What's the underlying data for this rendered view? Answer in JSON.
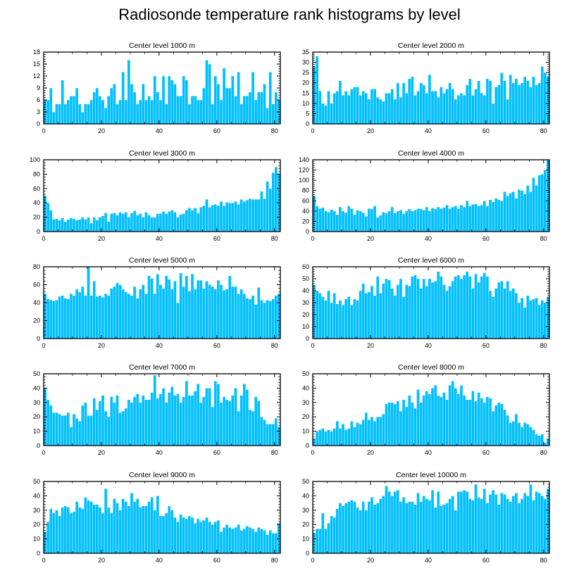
{
  "title": "Radiosonde temperature rank histograms by level",
  "colors": {
    "bar": "#00BFFF",
    "bar_edge": "#ffffff",
    "axis": "#000000"
  },
  "chart_data": [
    {
      "type": "bar",
      "title": "Center level 1000 m",
      "xlabel": "",
      "ylabel": "",
      "xlim": [
        0,
        82
      ],
      "ylim": [
        0,
        18
      ],
      "xticks": [
        0,
        20,
        40,
        60,
        80
      ],
      "yticks": [
        0,
        3,
        6,
        9,
        12,
        15,
        18
      ],
      "values": [
        6,
        6,
        9,
        3,
        5,
        5,
        11,
        5,
        6,
        7,
        7,
        9,
        5,
        3,
        5,
        5,
        6,
        8,
        9,
        7,
        6,
        4,
        7,
        9,
        10,
        5,
        6,
        13,
        6,
        16,
        10,
        8,
        5,
        6,
        10,
        6,
        7,
        6,
        12,
        8,
        6,
        12,
        5,
        12,
        11,
        10,
        7,
        7,
        12,
        11,
        5,
        7,
        7,
        6,
        6,
        9,
        16,
        15,
        5,
        12,
        10,
        6,
        14,
        9,
        9,
        12,
        7,
        13,
        5,
        7,
        7,
        8,
        13,
        6,
        8,
        8,
        10,
        4,
        13,
        5,
        8,
        6
      ]
    },
    {
      "type": "bar",
      "title": "Center level 2000 m",
      "xlabel": "",
      "ylabel": "",
      "xlim": [
        0,
        82
      ],
      "ylim": [
        0,
        35
      ],
      "xticks": [
        0,
        20,
        40,
        60,
        80
      ],
      "yticks": [
        0,
        5,
        10,
        15,
        20,
        25,
        30,
        35
      ],
      "values": [
        28,
        33,
        16,
        10,
        9,
        16,
        10,
        15,
        16,
        21,
        14,
        16,
        14,
        17,
        18,
        18,
        14,
        16,
        15,
        12,
        17,
        17,
        13,
        12,
        11,
        15,
        15,
        17,
        12,
        20,
        13,
        20,
        15,
        22,
        23,
        14,
        16,
        20,
        19,
        15,
        24,
        16,
        16,
        13,
        18,
        15,
        17,
        20,
        17,
        12,
        14,
        15,
        14,
        19,
        22,
        14,
        17,
        21,
        15,
        14,
        22,
        21,
        10,
        18,
        19,
        25,
        21,
        12,
        24,
        20,
        22,
        19,
        20,
        23,
        21,
        18,
        23,
        19,
        20,
        28,
        25,
        23
      ]
    },
    {
      "type": "bar",
      "title": "Center level 3000 m",
      "xlabel": "",
      "ylabel": "",
      "xlim": [
        0,
        82
      ],
      "ylim": [
        0,
        100
      ],
      "xticks": [
        0,
        20,
        40,
        60,
        80
      ],
      "yticks": [
        0,
        20,
        40,
        60,
        80,
        100
      ],
      "values": [
        50,
        40,
        30,
        17,
        18,
        16,
        19,
        14,
        17,
        19,
        18,
        16,
        17,
        20,
        17,
        20,
        12,
        20,
        16,
        20,
        22,
        26,
        14,
        25,
        26,
        23,
        27,
        25,
        27,
        20,
        26,
        29,
        23,
        25,
        20,
        27,
        23,
        20,
        20,
        25,
        25,
        28,
        25,
        28,
        30,
        27,
        20,
        24,
        25,
        30,
        33,
        30,
        33,
        26,
        34,
        36,
        45,
        34,
        37,
        38,
        36,
        42,
        36,
        41,
        40,
        40,
        42,
        38,
        45,
        42,
        44,
        46,
        45,
        45,
        45,
        56,
        46,
        70,
        60,
        82,
        90,
        80
      ]
    },
    {
      "type": "bar",
      "title": "Center level 4000 m",
      "xlabel": "",
      "ylabel": "",
      "xlim": [
        0,
        82
      ],
      "ylim": [
        0,
        140
      ],
      "xticks": [
        0,
        20,
        40,
        60,
        80
      ],
      "yticks": [
        0,
        20,
        40,
        60,
        80,
        100,
        120,
        140
      ],
      "values": [
        70,
        50,
        45,
        47,
        40,
        38,
        43,
        40,
        33,
        48,
        40,
        37,
        50,
        45,
        33,
        42,
        40,
        37,
        30,
        45,
        44,
        50,
        28,
        32,
        38,
        36,
        40,
        48,
        36,
        40,
        42,
        35,
        40,
        44,
        40,
        42,
        45,
        44,
        42,
        48,
        40,
        46,
        44,
        48,
        45,
        47,
        52,
        45,
        48,
        50,
        45,
        52,
        48,
        60,
        50,
        53,
        54,
        50,
        52,
        60,
        50,
        62,
        58,
        65,
        62,
        60,
        78,
        70,
        75,
        78,
        65,
        82,
        80,
        73,
        90,
        78,
        105,
        90,
        110,
        112,
        120,
        140
      ]
    },
    {
      "type": "bar",
      "title": "Center level 5000 m",
      "xlabel": "",
      "ylabel": "",
      "xlim": [
        0,
        82
      ],
      "ylim": [
        0,
        80
      ],
      "xticks": [
        0,
        20,
        40,
        60,
        80
      ],
      "yticks": [
        0,
        20,
        40,
        60,
        80
      ],
      "values": [
        50,
        44,
        43,
        42,
        43,
        47,
        48,
        45,
        44,
        50,
        48,
        55,
        52,
        58,
        48,
        80,
        48,
        64,
        47,
        48,
        46,
        50,
        48,
        56,
        58,
        62,
        60,
        55,
        52,
        50,
        48,
        58,
        45,
        55,
        60,
        50,
        70,
        67,
        50,
        72,
        60,
        56,
        70,
        66,
        55,
        64,
        40,
        73,
        58,
        70,
        53,
        72,
        55,
        65,
        65,
        56,
        64,
        60,
        58,
        55,
        65,
        60,
        54,
        55,
        70,
        58,
        58,
        50,
        55,
        50,
        45,
        44,
        48,
        38,
        57,
        43,
        40,
        43,
        42,
        44,
        48,
        50
      ]
    },
    {
      "type": "bar",
      "title": "Center level 6000 m",
      "xlabel": "",
      "ylabel": "",
      "xlim": [
        0,
        82
      ],
      "ylim": [
        0,
        60
      ],
      "xticks": [
        0,
        20,
        40,
        60,
        80
      ],
      "yticks": [
        0,
        10,
        20,
        30,
        40,
        50,
        60
      ],
      "values": [
        45,
        40,
        38,
        35,
        32,
        40,
        30,
        38,
        29,
        32,
        28,
        33,
        35,
        28,
        33,
        32,
        40,
        46,
        38,
        39,
        44,
        36,
        52,
        38,
        46,
        50,
        49,
        42,
        36,
        45,
        50,
        35,
        45,
        44,
        52,
        53,
        50,
        42,
        50,
        44,
        50,
        47,
        48,
        56,
        52,
        45,
        40,
        44,
        48,
        52,
        53,
        50,
        53,
        56,
        52,
        42,
        54,
        47,
        52,
        55,
        52,
        40,
        35,
        42,
        47,
        48,
        42,
        48,
        40,
        42,
        38,
        30,
        34,
        26,
        36,
        32,
        33,
        34,
        28,
        32,
        30,
        35
      ]
    },
    {
      "type": "bar",
      "title": "Center level 7000 m",
      "xlabel": "",
      "ylabel": "",
      "xlim": [
        0,
        82
      ],
      "ylim": [
        0,
        50
      ],
      "xticks": [
        0,
        20,
        40,
        60,
        80
      ],
      "yticks": [
        0,
        10,
        20,
        30,
        40,
        50
      ],
      "values": [
        40,
        32,
        28,
        23,
        23,
        22,
        21,
        21,
        23,
        13,
        22,
        19,
        17,
        28,
        30,
        21,
        21,
        33,
        25,
        31,
        35,
        24,
        20,
        34,
        30,
        35,
        23,
        24,
        26,
        32,
        30,
        34,
        36,
        30,
        35,
        32,
        32,
        37,
        49,
        33,
        36,
        40,
        30,
        37,
        41,
        35,
        36,
        30,
        34,
        45,
        35,
        35,
        38,
        43,
        30,
        34,
        40,
        40,
        27,
        45,
        43,
        30,
        34,
        32,
        31,
        35,
        40,
        24,
        35,
        43,
        39,
        25,
        24,
        34,
        31,
        20,
        18,
        15,
        15,
        15,
        19,
        13
      ]
    },
    {
      "type": "bar",
      "title": "Center level 8000 m",
      "xlabel": "",
      "ylabel": "",
      "xlim": [
        0,
        82
      ],
      "ylim": [
        0,
        50
      ],
      "xticks": [
        0,
        20,
        40,
        60,
        80
      ],
      "yticks": [
        0,
        10,
        20,
        30,
        40,
        50
      ],
      "values": [
        5,
        10,
        11,
        12,
        10,
        11,
        10,
        12,
        17,
        12,
        15,
        11,
        12,
        17,
        13,
        16,
        15,
        18,
        23,
        18,
        20,
        17,
        20,
        20,
        22,
        29,
        30,
        30,
        29,
        31,
        24,
        32,
        27,
        35,
        30,
        26,
        39,
        30,
        35,
        38,
        36,
        40,
        42,
        35,
        34,
        37,
        32,
        42,
        45,
        40,
        36,
        42,
        35,
        32,
        32,
        38,
        31,
        37,
        33,
        30,
        34,
        33,
        24,
        28,
        30,
        29,
        25,
        21,
        16,
        17,
        22,
        16,
        13,
        16,
        15,
        13,
        11,
        8,
        7,
        8,
        2,
        5
      ]
    },
    {
      "type": "bar",
      "title": "Center level 9000 m",
      "xlabel": "",
      "ylabel": "",
      "xlim": [
        0,
        82
      ],
      "ylim": [
        0,
        50
      ],
      "xticks": [
        0,
        20,
        40,
        60,
        80
      ],
      "yticks": [
        0,
        10,
        20,
        30,
        40,
        50
      ],
      "values": [
        15,
        22,
        31,
        28,
        30,
        26,
        32,
        33,
        32,
        28,
        29,
        36,
        32,
        31,
        39,
        37,
        36,
        34,
        34,
        32,
        28,
        45,
        32,
        28,
        38,
        35,
        30,
        38,
        36,
        33,
        42,
        36,
        38,
        32,
        33,
        33,
        36,
        39,
        30,
        40,
        26,
        26,
        28,
        33,
        30,
        25,
        22,
        27,
        25,
        24,
        26,
        25,
        21,
        24,
        22,
        23,
        25,
        22,
        20,
        22,
        23,
        15,
        18,
        20,
        18,
        17,
        18,
        20,
        16,
        17,
        19,
        18,
        17,
        15,
        18,
        17,
        16,
        13,
        16,
        14,
        14,
        21
      ]
    },
    {
      "type": "bar",
      "title": "Center level 10000 m",
      "xlabel": "",
      "ylabel": "",
      "xlim": [
        0,
        82
      ],
      "ylim": [
        0,
        50
      ],
      "xticks": [
        0,
        20,
        40,
        60,
        80
      ],
      "yticks": [
        0,
        10,
        20,
        30,
        40,
        50
      ],
      "values": [
        14,
        17,
        17,
        28,
        17,
        21,
        26,
        25,
        31,
        35,
        33,
        35,
        36,
        37,
        36,
        32,
        30,
        36,
        30,
        36,
        39,
        34,
        35,
        38,
        40,
        47,
        43,
        40,
        43,
        44,
        36,
        39,
        35,
        36,
        36,
        34,
        42,
        36,
        40,
        38,
        37,
        44,
        32,
        43,
        33,
        34,
        35,
        38,
        40,
        30,
        43,
        43,
        44,
        43,
        38,
        37,
        48,
        39,
        38,
        45,
        35,
        41,
        44,
        41,
        34,
        42,
        41,
        38,
        36,
        40,
        42,
        35,
        38,
        42,
        40,
        48,
        37,
        43,
        42,
        40,
        38,
        45
      ]
    }
  ]
}
